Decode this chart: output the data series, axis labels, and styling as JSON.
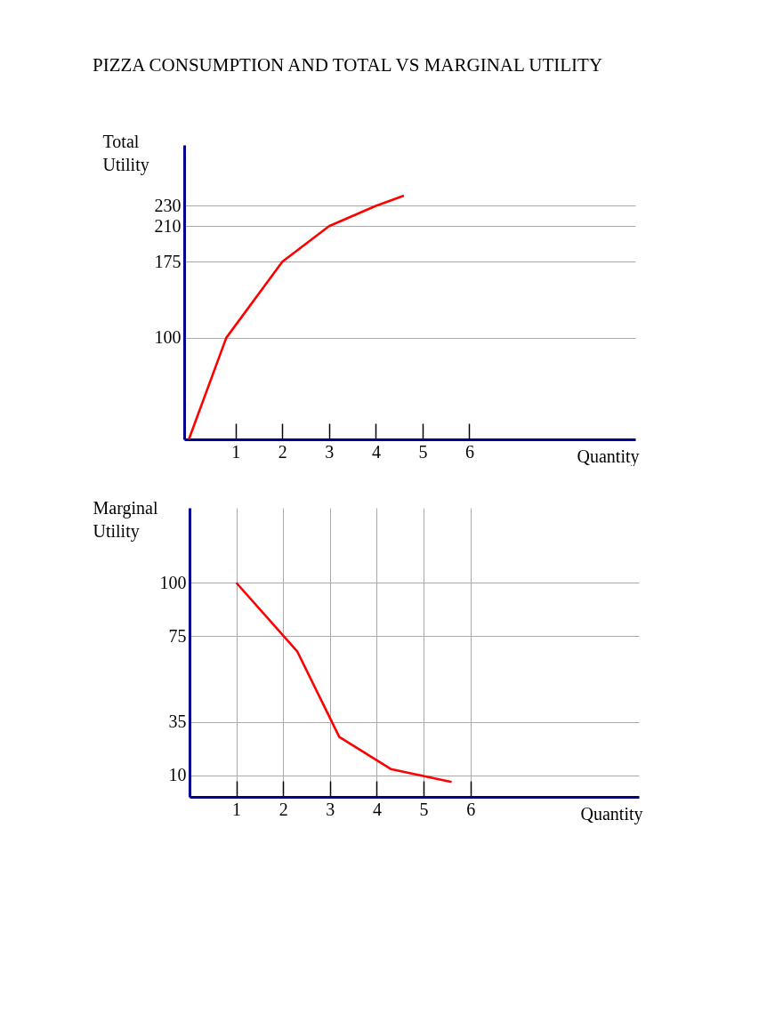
{
  "chart_data": [
    {
      "type": "line",
      "title": "PIZZA CONSUMPTION AND TOTAL VS MARGINAL UTILITY",
      "xlabel": "Quantity",
      "ylabel": "Total Utility",
      "x": [
        0,
        0.8,
        2,
        3,
        4,
        4.6
      ],
      "series": [
        {
          "color": "#ff0000",
          "values": [
            0,
            100,
            175,
            210,
            230,
            240
          ]
        }
      ],
      "xlim": [
        -0.1,
        9.55
      ],
      "xticks": [
        1,
        2,
        3,
        4,
        5,
        6
      ],
      "ylim": [
        0,
        290
      ],
      "yticks": [
        100,
        175,
        210,
        230
      ],
      "grid": "y",
      "marker": "none"
    },
    {
      "type": "line",
      "xlabel": "Quantity",
      "ylabel": "Marginal Utility",
      "x": [
        1,
        2.3,
        3.2,
        4.3,
        5.6
      ],
      "series": [
        {
          "color": "#ff0000",
          "values": [
            100,
            68,
            28,
            13,
            7
          ]
        }
      ],
      "xlim": [
        0,
        9.6
      ],
      "xticks": [
        1,
        2,
        3,
        4,
        5,
        6
      ],
      "ylim": [
        0,
        135
      ],
      "yticks": [
        10,
        35,
        75,
        100
      ],
      "grid": true,
      "marker": "none"
    }
  ]
}
